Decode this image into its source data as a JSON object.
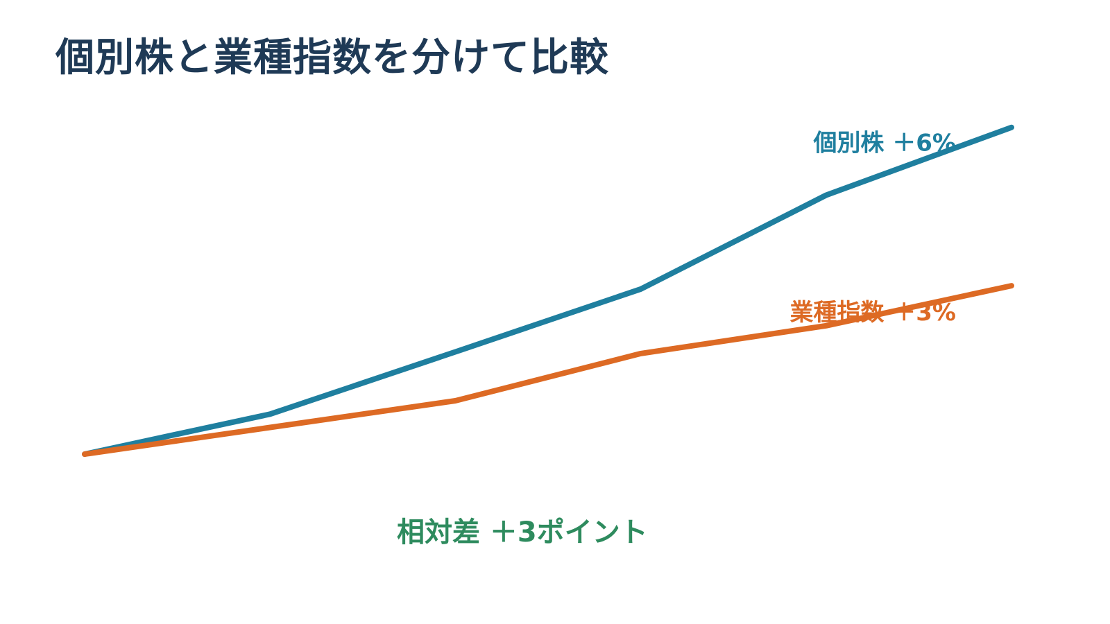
{
  "title": "個別株と業種指数を分けて比較",
  "colors": {
    "title": "#1f3a56",
    "stock": "#1f7f9f",
    "index": "#dd6a24",
    "difference": "#2e8b5e"
  },
  "chart_data": {
    "type": "line",
    "title": "個別株と業種指数を分けて比較",
    "x": [
      0,
      1,
      2,
      3,
      4,
      5
    ],
    "ylim": [
      0,
      6.3
    ],
    "grid": false,
    "series": [
      {
        "name": "個別株",
        "label": "個別株 ＋6%",
        "color": "#1f7f9f",
        "values": [
          0,
          0.72,
          1.84,
          2.97,
          4.66,
          5.88
        ]
      },
      {
        "name": "業種指数",
        "label": "業種指数 ＋3%",
        "color": "#dd6a24",
        "values": [
          0,
          0.48,
          0.96,
          1.81,
          2.31,
          3.03
        ]
      }
    ],
    "annotations": [
      {
        "text": "相対差 ＋3ポイント"
      }
    ]
  }
}
